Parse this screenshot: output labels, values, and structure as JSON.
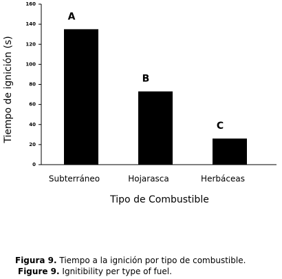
{
  "chart_data": {
    "type": "bar",
    "x_label": "Tipo de Combustible",
    "y_label": "Tiempo de ignición (s)",
    "categories": [
      "Subterráneo",
      "Hojarasca",
      "Herbáceas"
    ],
    "values": [
      135,
      73,
      26
    ],
    "annotations": [
      "A",
      "B",
      "C"
    ],
    "color": "#000000",
    "ylim": [
      0,
      160
    ],
    "yticks": [
      0,
      20,
      40,
      60,
      80,
      100,
      120,
      140,
      160
    ],
    "grid": false
  },
  "captions": [
    {
      "label": "Figura 9.",
      "text": "Tiempo a la ignición por tipo de combustible."
    },
    {
      "label": "Figure 9.",
      "text": "Ignitibility per type of fuel."
    }
  ]
}
